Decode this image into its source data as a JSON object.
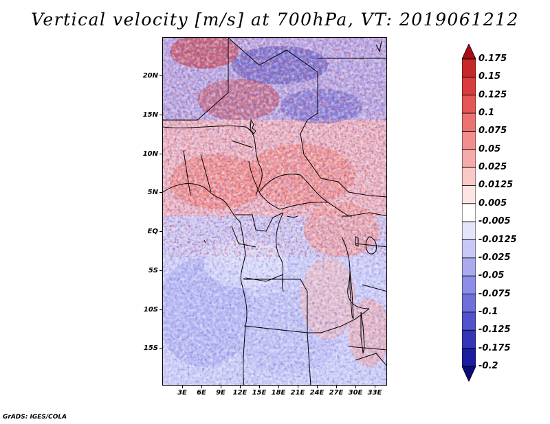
{
  "title": "Vertical velocity [m/s] at 700hPa, VT: 2019061212",
  "map": {
    "lat_labels": [
      "20N",
      "15N",
      "10N",
      "5N",
      "EQ",
      "5S",
      "10S",
      "15S"
    ],
    "lon_labels": [
      "3E",
      "6E",
      "9E",
      "12E",
      "15E",
      "18E",
      "21E",
      "24E",
      "27E",
      "30E",
      "33E"
    ]
  },
  "colorbar": {
    "levels": [
      "0.175",
      "0.15",
      "0.125",
      "0.1",
      "0.075",
      "0.05",
      "0.025",
      "0.0125",
      "0.005",
      "-0.005",
      "-0.0125",
      "-0.025",
      "-0.05",
      "-0.075",
      "-0.1",
      "-0.125",
      "-0.175",
      "-0.2"
    ],
    "colors": [
      "#a50f15",
      "#c62828",
      "#d83c3c",
      "#e55656",
      "#ec7272",
      "#f28e8e",
      "#f7aaaa",
      "#fbc8c8",
      "#fde4e4",
      "#ffffff",
      "#e4e4fb",
      "#c8c8f6",
      "#aaaaef",
      "#8e8ee8",
      "#7070dc",
      "#5252cc",
      "#3535b8",
      "#1c1c9e",
      "#0b0b7a"
    ]
  },
  "footer": "GrADS: IGES/COLA"
}
